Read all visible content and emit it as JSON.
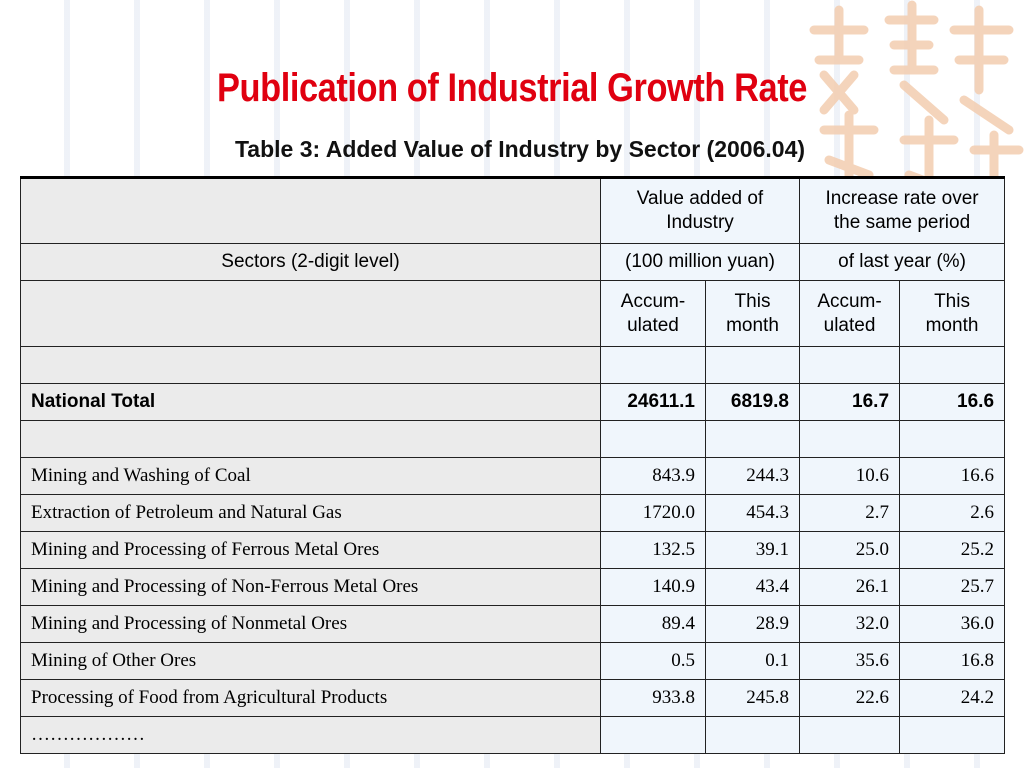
{
  "slide": {
    "title": "Publication of Industrial Growth Rate",
    "subtitle": "Table 3: Added Value of Industry by Sector (2006.04)"
  },
  "table": {
    "header": {
      "value_added": "Value added of Industry",
      "increase_rate": "Increase rate over the same period",
      "sectors": "Sectors (2-digit level)",
      "unit_value": "(100 million yuan)",
      "unit_rate": "of last year (%)",
      "accumulated": "Accum-ulated",
      "this_month": "This month"
    },
    "national_total": {
      "sector": "National Total",
      "value_accum": "24611.1",
      "value_month": "6819.8",
      "rate_accum": "16.7",
      "rate_month": "16.6"
    },
    "rows": [
      {
        "sector": "Mining and Washing of Coal",
        "value_accum": "843.9",
        "value_month": "244.3",
        "rate_accum": "10.6",
        "rate_month": "16.6"
      },
      {
        "sector": "Extraction of Petroleum and Natural Gas",
        "value_accum": "1720.0",
        "value_month": "454.3",
        "rate_accum": "2.7",
        "rate_month": "2.6"
      },
      {
        "sector": "Mining and Processing of Ferrous Metal Ores",
        "value_accum": "132.5",
        "value_month": "39.1",
        "rate_accum": "25.0",
        "rate_month": "25.2"
      },
      {
        "sector": "Mining and Processing of Non-Ferrous Metal Ores",
        "value_accum": "140.9",
        "value_month": "43.4",
        "rate_accum": "26.1",
        "rate_month": "25.7"
      },
      {
        "sector": "Mining and Processing of Nonmetal Ores",
        "value_accum": "89.4",
        "value_month": "28.9",
        "rate_accum": "32.0",
        "rate_month": "36.0"
      },
      {
        "sector": "Mining of Other Ores",
        "value_accum": "0.5",
        "value_month": "0.1",
        "rate_accum": "35.6",
        "rate_month": "16.8"
      },
      {
        "sector": "Processing of Food from Agricultural Products",
        "value_accum": "933.8",
        "value_month": "245.8",
        "rate_accum": "22.6",
        "rate_month": "24.2"
      }
    ],
    "ellipsis": "………………"
  },
  "colors": {
    "title": "#e00010",
    "sector_bg": "#ebebeb",
    "number_bg": "#f0f6fc",
    "decoration": "#f2c9a8"
  }
}
